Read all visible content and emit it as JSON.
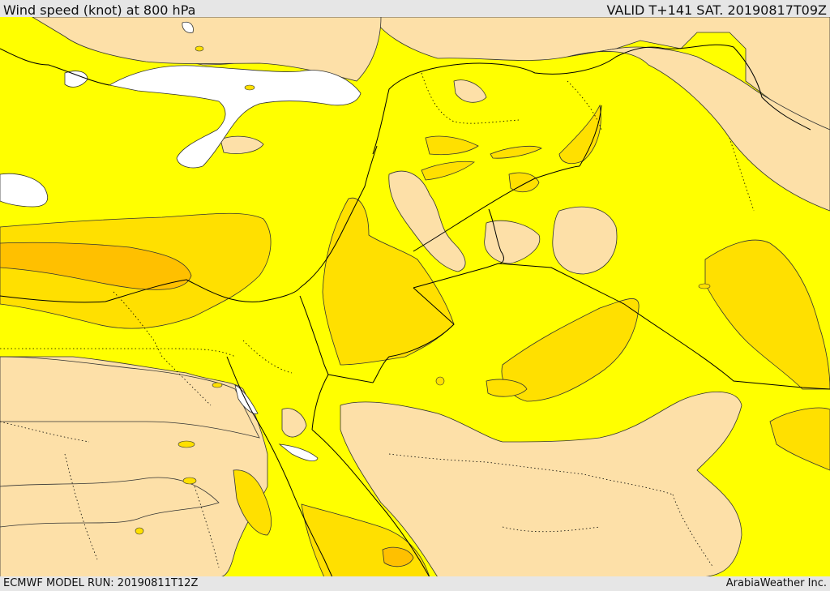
{
  "header": {
    "title": "Wind speed (knot) at 800 hPa",
    "valid": "VALID T+141 SAT. 20190817T09Z"
  },
  "footer": {
    "model_run": "ECMWF MODEL RUN: 20190811T12Z",
    "credit": "ArabiaWeather Inc."
  },
  "colors": {
    "background_yellow": "#ffff00",
    "gold": "#ffe000",
    "orange": "#ffc000",
    "dark_orange": "#ffb000",
    "tan": "#fde0a8",
    "no_data_white": "#ffffff",
    "boundary": "#000000"
  }
}
